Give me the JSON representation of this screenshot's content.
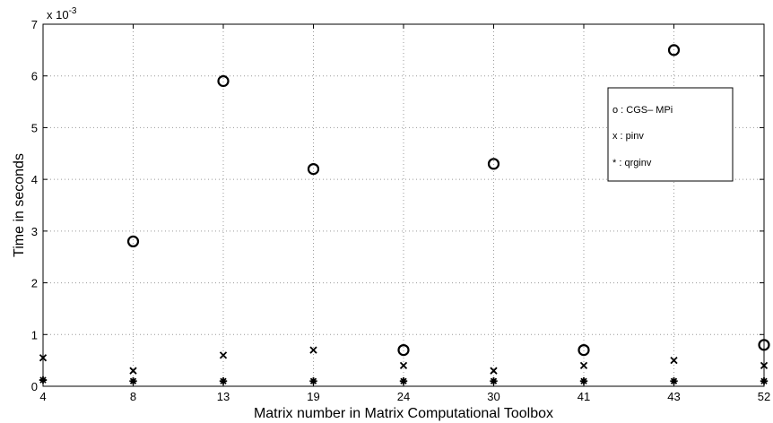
{
  "chart_data": {
    "type": "scatter",
    "xlabel": "Matrix number in Matrix Computational Toolbox",
    "ylabel": "Time in seconds",
    "y_exponent_label": "x 10",
    "y_exponent_power": "-3",
    "categories": [
      "4",
      "8",
      "13",
      "19",
      "24",
      "30",
      "41",
      "43",
      "52"
    ],
    "ylim": [
      0,
      7
    ],
    "yticks": [
      0,
      1,
      2,
      3,
      4,
      5,
      6,
      7
    ],
    "grid": true,
    "legend_position": "upper-right",
    "series": [
      {
        "name": "CGS- MPi",
        "legend_text": "o : CGS– MPi",
        "marker": "circle",
        "values": [
          null,
          2.8,
          5.9,
          4.2,
          0.7,
          4.3,
          0.7,
          6.5,
          0.8
        ]
      },
      {
        "name": "pinv",
        "legend_text": "x  : pinv",
        "marker": "x",
        "values": [
          0.55,
          0.3,
          0.6,
          0.7,
          0.4,
          0.3,
          0.4,
          0.5,
          0.4
        ]
      },
      {
        "name": "qrginv",
        "legend_text": "*  : qrginv",
        "marker": "star",
        "values": [
          0.12,
          0.1,
          0.1,
          0.1,
          0.1,
          0.1,
          0.1,
          0.1,
          0.1
        ]
      }
    ]
  }
}
